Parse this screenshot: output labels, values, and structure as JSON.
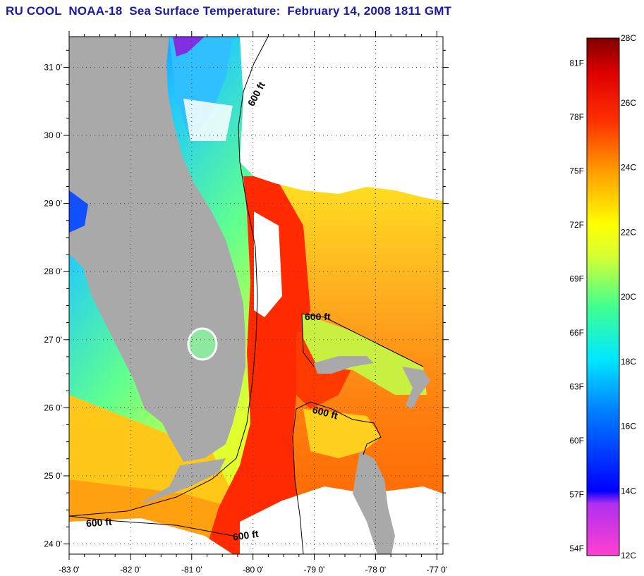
{
  "title": "RU COOL  NOAA-18  Sea Surface Temperature:  February 14, 2008 1811 GMT",
  "map": {
    "lon_labels": [
      "-83 0'",
      "-82 0'",
      "-81 0'",
      "-80 0'",
      "-79 0'",
      "-78 0'",
      "-77 0'"
    ],
    "lat_labels": [
      "31 0'",
      "30 0'",
      "29 0'",
      "28 0'",
      "27 0'",
      "26 0'",
      "25 0'",
      "24 0'"
    ],
    "lon_range": [
      -83,
      -76.9
    ],
    "lat_range": [
      23.85,
      31.45
    ],
    "contour_labels": [
      "600 ft",
      "600 ft",
      "600 ft",
      "600 ft",
      "600 ft"
    ],
    "colors": {
      "land": "#a9a9a9",
      "cloud": "#ffffff",
      "gulf_stream": "#ff2a00"
    }
  },
  "colorbar": {
    "fahrenheit_labels": [
      "81F",
      "78F",
      "75F",
      "72F",
      "69F",
      "66F",
      "63F",
      "60F",
      "57F",
      "54F"
    ],
    "celsius_labels": [
      "28C",
      "26C",
      "24C",
      "22C",
      "20C",
      "18C",
      "16C",
      "14C",
      "12C"
    ],
    "range_c": [
      12,
      28
    ]
  }
}
